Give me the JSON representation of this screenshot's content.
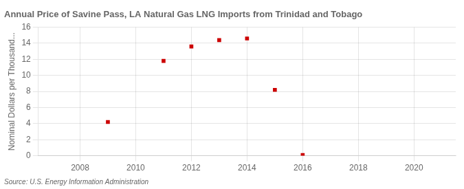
{
  "chart_data": {
    "type": "scatter",
    "title": "Annual Price of Savine Pass, LA Natural Gas LNG Imports from Trinidad and Tobago",
    "y_label": "Nominal Dollars per Thousand...",
    "annotations": [
      "Source: U.S. Energy Information Administration"
    ],
    "x": [
      2009,
      2011,
      2012,
      2013,
      2014,
      2015,
      2016
    ],
    "values": [
      4.2,
      11.8,
      13.6,
      14.4,
      14.6,
      8.2,
      0.08
    ],
    "color": "#cc0000",
    "marker": "square",
    "xlim": [
      2006.5,
      2021.5
    ],
    "ylim": [
      0,
      16
    ],
    "xticks": [
      2008,
      2010,
      2012,
      2014,
      2016,
      2018,
      2020
    ],
    "yticks": [
      0,
      2,
      4,
      6,
      8,
      10,
      12,
      14,
      16
    ],
    "grid": true,
    "legend": false
  }
}
